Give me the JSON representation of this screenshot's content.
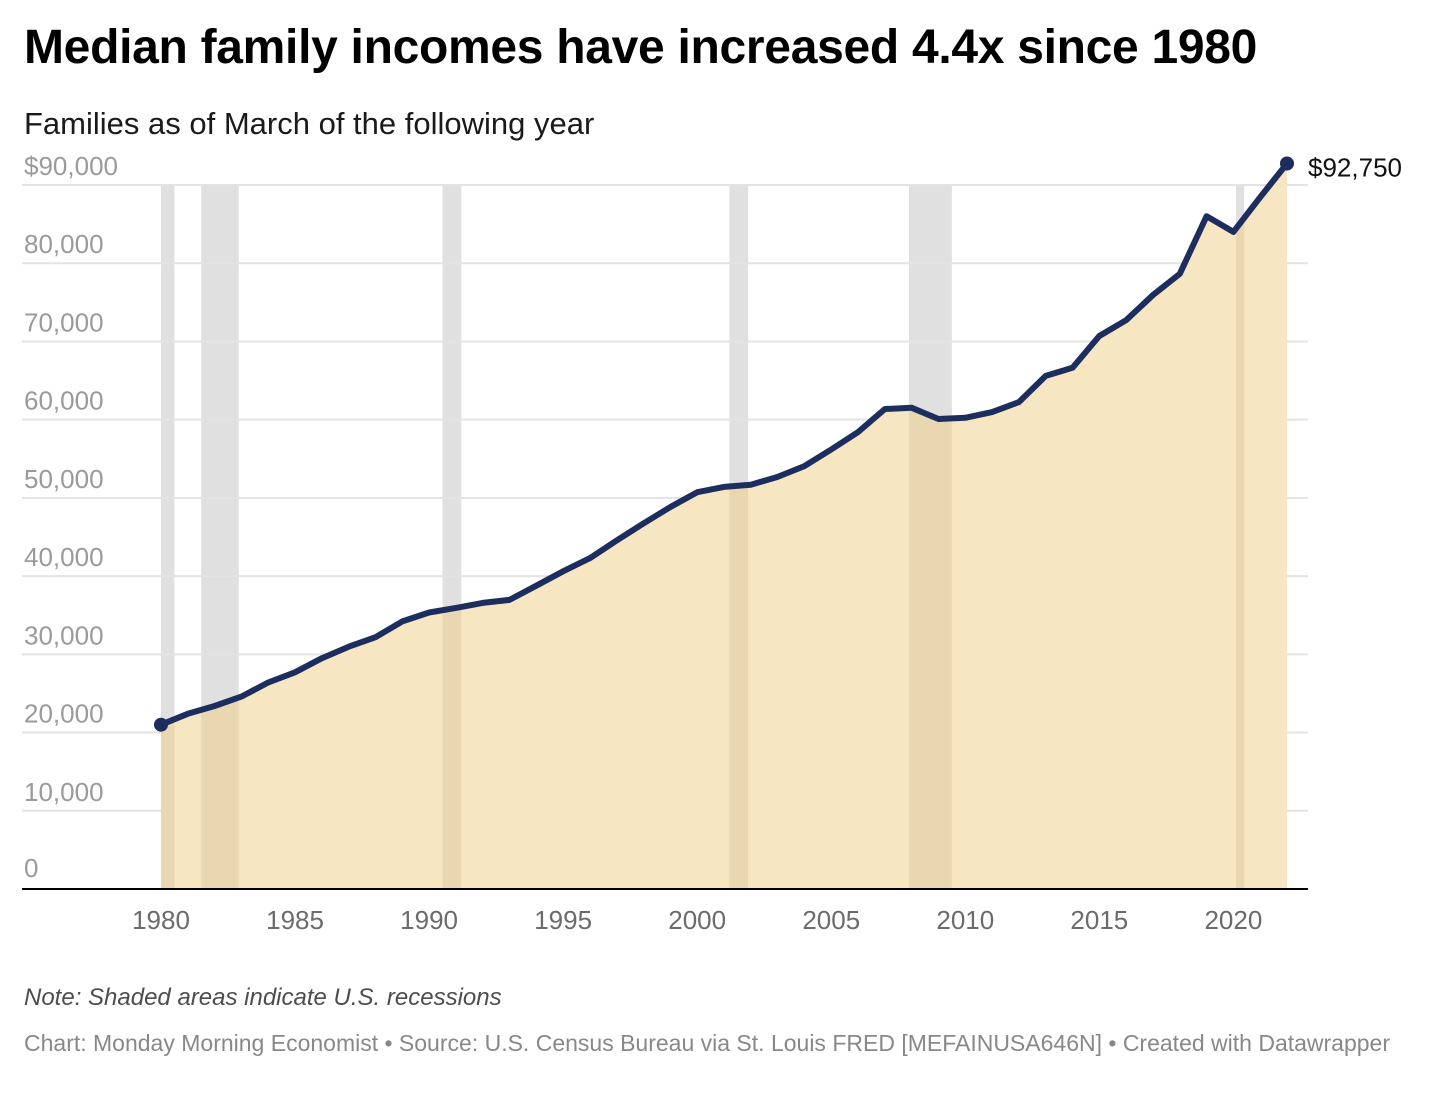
{
  "title": "Median family incomes have increased 4.4x since 1980",
  "subtitle": "Families as of March of the following year",
  "note": "Note: Shaded areas indicate U.S. recessions",
  "footer": "Chart: Monday Morning Economist • Source: U.S. Census Bureau via St. Louis FRED [MEFAINUSA646N] • Created with Datawrapper",
  "colors": {
    "line": "#1c2d5e",
    "area": "#f6e6c1",
    "recession": "#e0e0e0",
    "grid": "#e3e3e3",
    "axis_text": "#9a9a9a",
    "x_axis_text": "#6b6b6b",
    "baseline": "#000000"
  },
  "chart_data": {
    "type": "area",
    "title": "Median family incomes have increased 4.4x since 1980",
    "subtitle": "Families as of March of the following year",
    "xlabel": "",
    "ylabel": "",
    "xlim": [
      1979,
      2023
    ],
    "ylim": [
      0,
      90000
    ],
    "grid": true,
    "legend": "none",
    "y_ticks": [
      {
        "value": 0,
        "label": "0"
      },
      {
        "value": 10000,
        "label": "10,000"
      },
      {
        "value": 20000,
        "label": "20,000"
      },
      {
        "value": 30000,
        "label": "30,000"
      },
      {
        "value": 40000,
        "label": "40,000"
      },
      {
        "value": 50000,
        "label": "50,000"
      },
      {
        "value": 60000,
        "label": "60,000"
      },
      {
        "value": 70000,
        "label": "70,000"
      },
      {
        "value": 80000,
        "label": "80,000"
      },
      {
        "value": 90000,
        "label": "$90,000"
      }
    ],
    "x_ticks": [
      {
        "value": 1980,
        "label": "1980"
      },
      {
        "value": 1985,
        "label": "1985"
      },
      {
        "value": 1990,
        "label": "1990"
      },
      {
        "value": 1995,
        "label": "1995"
      },
      {
        "value": 2000,
        "label": "2000"
      },
      {
        "value": 2005,
        "label": "2005"
      },
      {
        "value": 2010,
        "label": "2010"
      },
      {
        "value": 2015,
        "label": "2015"
      },
      {
        "value": 2020,
        "label": "2020"
      }
    ],
    "recessions": [
      {
        "start": 1980.0,
        "end": 1980.5
      },
      {
        "start": 1981.5,
        "end": 1982.9
      },
      {
        "start": 1990.5,
        "end": 1991.2
      },
      {
        "start": 2001.2,
        "end": 2001.9
      },
      {
        "start": 2007.9,
        "end": 2009.5
      },
      {
        "start": 2020.1,
        "end": 2020.4
      }
    ],
    "series": [
      {
        "x": [
          1980,
          1981,
          1982,
          1983,
          1984,
          1985,
          1986,
          1987,
          1988,
          1989,
          1990,
          1991,
          1992,
          1993,
          1994,
          1995,
          1996,
          1997,
          1998,
          1999,
          2000,
          2001,
          2002,
          2003,
          2004,
          2005,
          2006,
          2007,
          2008,
          2009,
          2010,
          2011,
          2012,
          2013,
          2014,
          2015,
          2016,
          2017,
          2018,
          2019,
          2020,
          2021,
          2022
        ],
        "values": [
          21000,
          22400,
          23400,
          24600,
          26400,
          27700,
          29500,
          30970,
          32190,
          34210,
          35350,
          35940,
          36570,
          36960,
          38780,
          40610,
          42300,
          44570,
          46740,
          48830,
          50730,
          51410,
          51680,
          52680,
          54060,
          56190,
          58410,
          61360,
          61520,
          60090,
          60240,
          60970,
          62240,
          65590,
          66630,
          70700,
          72710,
          75940,
          78650,
          86010,
          84010,
          88440,
          92750
        ]
      }
    ],
    "annotations": [
      {
        "x": 2022,
        "y": 92750,
        "label": "$92,750"
      }
    ]
  }
}
